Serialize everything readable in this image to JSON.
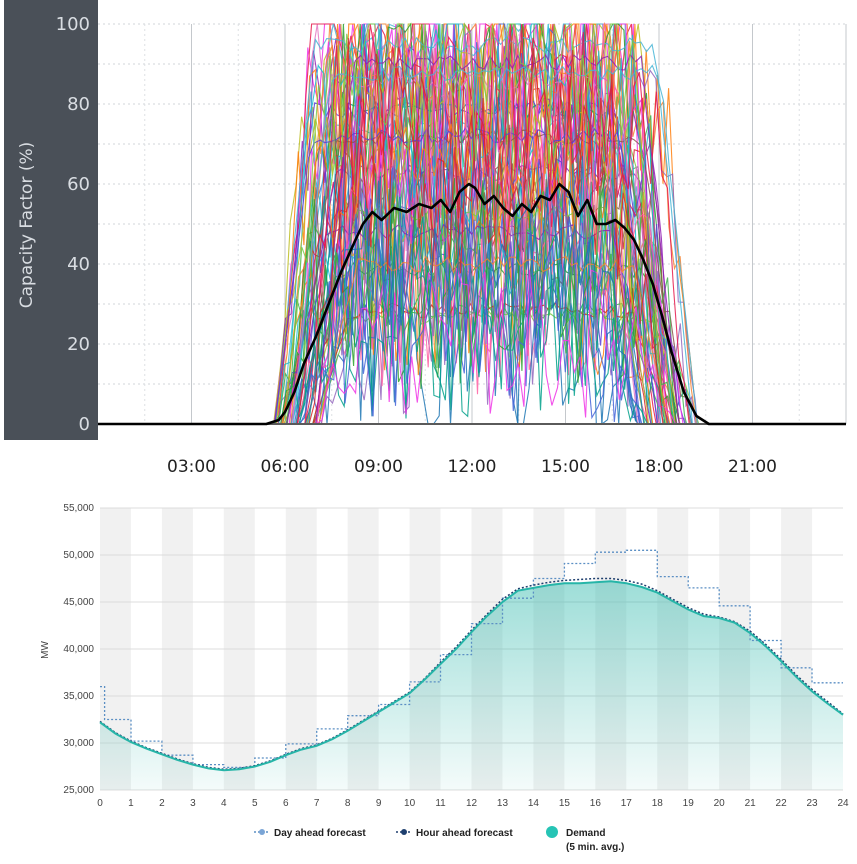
{
  "chart_data": [
    {
      "type": "line",
      "title": "",
      "ylabel": "Capacity Factor (%)",
      "xlabel": "",
      "ylim": [
        0,
        100
      ],
      "yticks": [
        "0",
        "20",
        "40",
        "60",
        "80",
        "100"
      ],
      "xticks": [
        "03:00",
        "06:00",
        "09:00",
        "12:00",
        "15:00",
        "18:00",
        "21:00"
      ],
      "xrange_hours": [
        0,
        24
      ],
      "grid": true,
      "colors": {
        "mean": "#000000",
        "axis_panel": "#4a5058"
      },
      "series": [
        {
          "x": [
            0,
            5.4,
            5.8,
            6.0,
            6.3,
            6.6,
            7.0,
            7.4,
            7.8,
            8.2,
            8.5,
            8.8,
            9.1,
            9.5,
            9.9,
            10.3,
            10.7,
            11.0,
            11.3,
            11.6,
            11.9,
            12.1,
            12.4,
            12.7,
            13.0,
            13.3,
            13.6,
            13.9,
            14.2,
            14.5,
            14.8,
            15.1,
            15.4,
            15.7,
            16.0,
            16.3,
            16.6,
            16.9,
            17.2,
            17.5,
            17.8,
            18.1,
            18.4,
            18.8,
            19.2,
            19.6,
            24
          ],
          "y": [
            0,
            0,
            1,
            3,
            8,
            15,
            22,
            30,
            38,
            45,
            50,
            53,
            51,
            54,
            53,
            55,
            54,
            56,
            53,
            58,
            60,
            59,
            55,
            57,
            54,
            52,
            55,
            53,
            57,
            56,
            60,
            58,
            52,
            56,
            50,
            50,
            51,
            49,
            46,
            41,
            35,
            27,
            18,
            8,
            2,
            0,
            0
          ]
        }
      ]
    },
    {
      "type": "line",
      "title": "",
      "ylabel": "MW",
      "xlabel": "",
      "ylim": [
        25000,
        55000
      ],
      "yticks": [
        "25,000",
        "30,000",
        "35,000",
        "40,000",
        "45,000",
        "50,000",
        "55,000"
      ],
      "xticks": [
        "0",
        "1",
        "2",
        "3",
        "4",
        "5",
        "6",
        "7",
        "8",
        "9",
        "10",
        "11",
        "12",
        "13",
        "14",
        "15",
        "16",
        "17",
        "18",
        "19",
        "20",
        "21",
        "22",
        "23",
        "24"
      ],
      "grid": true,
      "legend_position": "bottom-center",
      "colors": {
        "demand": "#26b5a8",
        "day_ahead": "#5b8fc4",
        "hour_ahead": "#1e3f6e"
      },
      "series": [
        {
          "name": "Demand",
          "x": [
            0,
            0.5,
            1,
            1.5,
            2,
            2.5,
            3,
            3.5,
            4,
            4.5,
            5,
            5.5,
            6,
            6.5,
            7,
            7.5,
            8,
            8.5,
            9,
            9.5,
            10,
            10.5,
            11,
            11.5,
            12,
            12.5,
            13,
            13.5,
            14,
            14.5,
            15,
            15.5,
            16,
            16.5,
            17,
            17.5,
            18,
            18.5,
            19,
            19.5,
            20,
            20.5,
            21,
            21.5,
            22,
            22.5,
            23,
            23.5,
            24
          ],
          "values": [
            32200,
            31000,
            30100,
            29400,
            28800,
            28200,
            27700,
            27300,
            27100,
            27200,
            27500,
            28000,
            28700,
            29300,
            29700,
            30400,
            31300,
            32300,
            33300,
            34300,
            35300,
            36800,
            38400,
            40000,
            41800,
            43500,
            45000,
            46200,
            46500,
            46800,
            47000,
            47000,
            47100,
            47200,
            47000,
            46600,
            46000,
            45100,
            44200,
            43500,
            43300,
            42800,
            41700,
            40300,
            38700,
            37000,
            35500,
            34200,
            33000
          ]
        },
        {
          "name": "Hour ahead forecast",
          "x": [
            0,
            0.5,
            1,
            1.5,
            2,
            2.5,
            3,
            3.5,
            4,
            4.5,
            5,
            5.5,
            6,
            6.5,
            7,
            7.5,
            8,
            8.5,
            9,
            9.5,
            10,
            10.5,
            11,
            11.5,
            12,
            12.5,
            13,
            13.5,
            14,
            14.5,
            15,
            15.5,
            16,
            16.5,
            17,
            17.5,
            18,
            18.5,
            19,
            19.5,
            20,
            20.5,
            21,
            21.5,
            22,
            22.5,
            23,
            23.5,
            24
          ],
          "values": [
            32300,
            31100,
            30200,
            29500,
            28900,
            28300,
            27800,
            27400,
            27200,
            27300,
            27600,
            28100,
            28800,
            29400,
            29800,
            30500,
            31400,
            32400,
            33400,
            34400,
            35400,
            36900,
            38600,
            40200,
            42000,
            43700,
            45300,
            46400,
            46800,
            47100,
            47300,
            47400,
            47500,
            47500,
            47300,
            46900,
            46200,
            45300,
            44400,
            43700,
            43400,
            42900,
            41900,
            40500,
            38900,
            37200,
            35700,
            34400,
            33100
          ]
        },
        {
          "name": "Day ahead forecast",
          "x": [
            0,
            0.15,
            1,
            2,
            3,
            4,
            5,
            6,
            7,
            8,
            9,
            10,
            11,
            12,
            13,
            14,
            15,
            16,
            17,
            18,
            19,
            20,
            21,
            22,
            23,
            24
          ],
          "values": [
            36000,
            32500,
            30200,
            28700,
            27700,
            27400,
            28400,
            29900,
            31500,
            32900,
            34100,
            36500,
            39400,
            42700,
            45400,
            47500,
            49100,
            50300,
            50500,
            47700,
            46500,
            44600,
            40900,
            38000,
            36400,
            36400
          ]
        }
      ],
      "legend": [
        "Day ahead forecast",
        "Hour ahead forecast",
        "Demand",
        "(5 min. avg.)"
      ]
    }
  ]
}
